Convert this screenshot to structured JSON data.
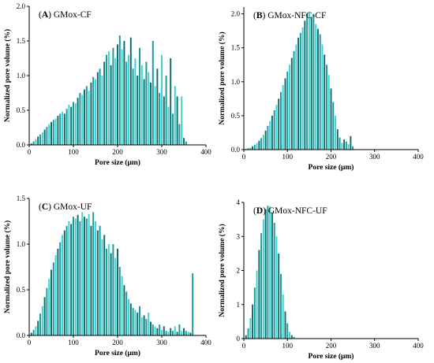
{
  "colors": {
    "bar_dark": "#0e6b6b",
    "bar_mid": "#1a9a9a",
    "bar_light": "#38d4d4"
  },
  "chart_data": [
    {
      "type": "bar",
      "panel": "A",
      "title": "GMox-CF",
      "xlabel": "Pore size (μm)",
      "ylabel": "Normalized pore volume (%)",
      "xlim": [
        0,
        400
      ],
      "ylim": [
        0,
        2.0
      ],
      "xticks": [
        "0",
        "100",
        "200",
        "300",
        "400"
      ],
      "yticks": [
        "0.0",
        "0.5",
        "1.0",
        "1.5",
        "2.0"
      ],
      "x": [
        5,
        10,
        15,
        20,
        25,
        30,
        35,
        40,
        45,
        50,
        55,
        60,
        65,
        70,
        75,
        80,
        85,
        90,
        95,
        100,
        105,
        110,
        115,
        120,
        125,
        130,
        135,
        140,
        145,
        150,
        155,
        160,
        165,
        170,
        175,
        180,
        185,
        190,
        195,
        200,
        205,
        210,
        215,
        220,
        225,
        230,
        235,
        240,
        245,
        250,
        255,
        260,
        265,
        270,
        275,
        280,
        285,
        290,
        295,
        300,
        305,
        310,
        315,
        320,
        325,
        330,
        335,
        340,
        345,
        350,
        355
      ],
      "values": [
        0.02,
        0.05,
        0.08,
        0.12,
        0.15,
        0.18,
        0.22,
        0.26,
        0.3,
        0.33,
        0.36,
        0.38,
        0.42,
        0.45,
        0.48,
        0.45,
        0.52,
        0.58,
        0.55,
        0.62,
        0.6,
        0.68,
        0.75,
        0.72,
        0.8,
        0.85,
        0.78,
        0.9,
        0.98,
        0.95,
        1.05,
        1.1,
        1.0,
        1.2,
        1.3,
        1.35,
        1.15,
        1.4,
        1.25,
        1.45,
        1.58,
        1.38,
        1.5,
        1.2,
        1.3,
        1.55,
        1.1,
        1.25,
        1.0,
        1.4,
        1.15,
        0.95,
        1.2,
        1.05,
        0.9,
        1.5,
        0.85,
        1.1,
        0.75,
        1.3,
        0.7,
        1.0,
        0.55,
        1.25,
        0.45,
        0.85,
        0.7,
        0.3,
        0.7,
        0.1,
        0.05
      ]
    },
    {
      "type": "bar",
      "panel": "B",
      "title": "GMox-NFC-CF",
      "xlabel": "Pore size (μm)",
      "ylabel": "Normalized pore volume (%)",
      "xlim": [
        0,
        400
      ],
      "ylim": [
        0,
        2.1
      ],
      "xticks": [
        "0",
        "100",
        "200",
        "300",
        "400"
      ],
      "yticks": [
        "0.0",
        "0.5",
        "1.0",
        "1.5",
        "2.0"
      ],
      "x": [
        5,
        10,
        15,
        20,
        25,
        30,
        35,
        40,
        45,
        50,
        55,
        60,
        65,
        70,
        75,
        80,
        85,
        90,
        95,
        100,
        105,
        110,
        115,
        120,
        125,
        130,
        135,
        140,
        145,
        150,
        155,
        160,
        165,
        170,
        175,
        180,
        185,
        190,
        195,
        200,
        205,
        210,
        215,
        220,
        225,
        230,
        235,
        240,
        245,
        250
      ],
      "values": [
        0.01,
        0.02,
        0.03,
        0.05,
        0.07,
        0.1,
        0.13,
        0.17,
        0.22,
        0.28,
        0.35,
        0.42,
        0.5,
        0.58,
        0.66,
        0.75,
        0.85,
        0.95,
        1.05,
        1.15,
        1.25,
        1.35,
        1.45,
        1.55,
        1.65,
        1.72,
        1.8,
        1.9,
        2.0,
        2.02,
        1.95,
        2.0,
        1.85,
        1.78,
        1.7,
        1.55,
        1.4,
        1.25,
        1.1,
        0.9,
        0.7,
        0.5,
        0.3,
        0.18,
        0.1,
        0.15,
        0.12,
        0.08,
        0.2,
        0.05
      ]
    },
    {
      "type": "bar",
      "panel": "C",
      "title": "GMox-UF",
      "xlabel": "Pore size (μm)",
      "ylabel": "Normalized pore volume (%)",
      "xlim": [
        0,
        400
      ],
      "ylim": [
        0,
        1.5
      ],
      "xticks": [
        "0",
        "100",
        "200",
        "300",
        "400"
      ],
      "yticks": [
        "0.0",
        "0.5",
        "1.0",
        "1.5"
      ],
      "x": [
        5,
        10,
        15,
        20,
        25,
        30,
        35,
        40,
        45,
        50,
        55,
        60,
        65,
        70,
        75,
        80,
        85,
        90,
        95,
        100,
        105,
        110,
        115,
        120,
        125,
        130,
        135,
        140,
        145,
        150,
        155,
        160,
        165,
        170,
        175,
        180,
        185,
        190,
        195,
        200,
        205,
        210,
        215,
        220,
        225,
        230,
        235,
        240,
        245,
        250,
        255,
        260,
        265,
        270,
        275,
        280,
        285,
        290,
        295,
        300,
        305,
        310,
        315,
        320,
        325,
        330,
        335,
        340,
        345,
        350,
        355,
        360,
        365,
        370
      ],
      "values": [
        0.03,
        0.06,
        0.1,
        0.16,
        0.24,
        0.32,
        0.42,
        0.52,
        0.62,
        0.72,
        0.8,
        0.88,
        0.95,
        1.02,
        1.1,
        1.15,
        1.2,
        1.25,
        1.22,
        1.3,
        1.28,
        1.32,
        1.25,
        1.35,
        1.3,
        1.28,
        1.33,
        1.2,
        1.35,
        1.25,
        1.15,
        1.2,
        1.05,
        1.1,
        0.95,
        1.0,
        0.9,
        1.0,
        0.85,
        0.95,
        0.75,
        0.65,
        0.55,
        0.48,
        0.4,
        0.35,
        0.3,
        0.28,
        0.25,
        0.32,
        0.2,
        0.22,
        0.18,
        0.25,
        0.15,
        0.12,
        0.1,
        0.08,
        0.12,
        0.06,
        0.1,
        0.05,
        0.04,
        0.08,
        0.05,
        0.1,
        0.04,
        0.12,
        0.05,
        0.08,
        0.05,
        0.04,
        0.03,
        0.68
      ]
    },
    {
      "type": "bar",
      "panel": "D",
      "title": "GMox-NFC-UF",
      "xlabel": "Pore size (μm)",
      "ylabel": "Normalized pore volume (%)",
      "xlim": [
        0,
        400
      ],
      "ylim": [
        0,
        4
      ],
      "xticks": [
        "0",
        "100",
        "200",
        "300",
        "400"
      ],
      "yticks": [
        "0",
        "1",
        "2",
        "3",
        "4"
      ],
      "x": [
        5,
        10,
        15,
        20,
        25,
        30,
        35,
        40,
        45,
        50,
        55,
        60,
        65,
        70,
        75,
        80,
        85,
        90,
        95,
        100,
        105,
        110,
        115
      ],
      "values": [
        0.1,
        0.3,
        0.6,
        1.0,
        1.5,
        2.0,
        2.6,
        3.1,
        3.5,
        3.8,
        3.9,
        3.88,
        3.7,
        3.4,
        3.0,
        2.5,
        1.9,
        1.3,
        0.8,
        0.45,
        0.2,
        0.1,
        0.05
      ]
    }
  ]
}
